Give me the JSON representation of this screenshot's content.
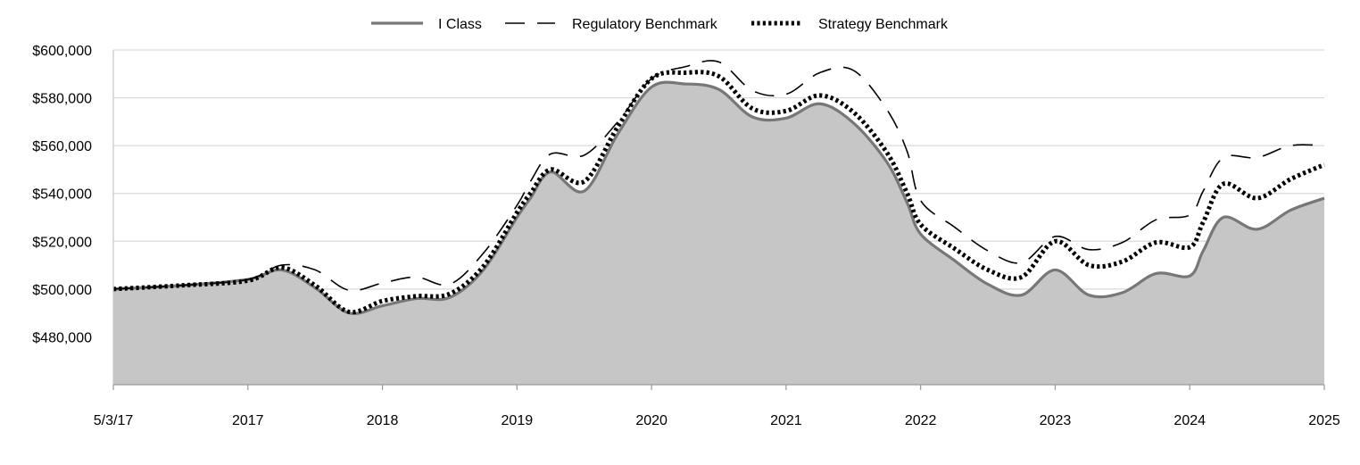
{
  "chart_data": {
    "type": "area",
    "legend_position": "top",
    "grid": true,
    "ylim": [
      460000,
      600000
    ],
    "y_ticks": [
      {
        "value": 480000,
        "label": "$480,000"
      },
      {
        "value": 500000,
        "label": "$500,000"
      },
      {
        "value": 520000,
        "label": "$520,000"
      },
      {
        "value": 540000,
        "label": "$540,000"
      },
      {
        "value": 560000,
        "label": "$560,000"
      },
      {
        "value": 580000,
        "label": "$580,000"
      },
      {
        "value": 600000,
        "label": "$600,000"
      }
    ],
    "x_ticks": [
      "5/3/17",
      "2017",
      "2018",
      "2019",
      "2020",
      "2021",
      "2022",
      "2023",
      "2024",
      "2025"
    ],
    "x": [
      0,
      0.5,
      1,
      1.25,
      1.5,
      1.75,
      2,
      2.25,
      2.5,
      2.75,
      3,
      3.1,
      3.25,
      3.5,
      3.75,
      4,
      4.25,
      4.5,
      4.75,
      5,
      5.25,
      5.5,
      5.75,
      5.9,
      6,
      6.25,
      6.5,
      6.75,
      7,
      7.25,
      7.5,
      7.75,
      8,
      8.1,
      8.25,
      8.5,
      8.75,
      9
    ],
    "series": [
      {
        "name": "I Class",
        "color": "#777777",
        "style": "solid",
        "filled": true,
        "fill_color": "#c6c6c6",
        "values": [
          500000,
          501500,
          504000,
          508000,
          500500,
          490000,
          493000,
          496000,
          496500,
          508000,
          530000,
          538000,
          549000,
          541000,
          565000,
          584500,
          585800,
          583500,
          572000,
          571500,
          577500,
          569500,
          553000,
          536000,
          523000,
          512000,
          502000,
          497500,
          508000,
          497500,
          498500,
          506500,
          505500,
          516000,
          530000,
          525000,
          533000,
          538000
        ]
      },
      {
        "name": "Regulatory Benchmark",
        "color": "#000000",
        "style": "dashed",
        "filled": false,
        "values": [
          500000,
          501500,
          504000,
          510000,
          508000,
          499500,
          502500,
          505000,
          502000,
          515000,
          535000,
          545000,
          556500,
          556000,
          570000,
          588000,
          593000,
          595000,
          583000,
          581500,
          590500,
          591500,
          575000,
          557500,
          537000,
          526000,
          516000,
          511000,
          522000,
          516500,
          519500,
          529000,
          531000,
          541000,
          555000,
          555000,
          560000,
          560000
        ]
      },
      {
        "name": "Strategy Benchmark",
        "color": "#000000",
        "style": "dotted",
        "filled": false,
        "values": [
          500000,
          501500,
          503500,
          509000,
          501500,
          490500,
          495000,
          497000,
          498000,
          509500,
          532000,
          540000,
          550000,
          545000,
          568000,
          588000,
          590500,
          589000,
          575500,
          574500,
          581000,
          574000,
          557000,
          540000,
          527000,
          517000,
          508000,
          505000,
          520000,
          510000,
          511500,
          519500,
          517500,
          528000,
          544000,
          538000,
          546000,
          552000
        ]
      }
    ]
  }
}
